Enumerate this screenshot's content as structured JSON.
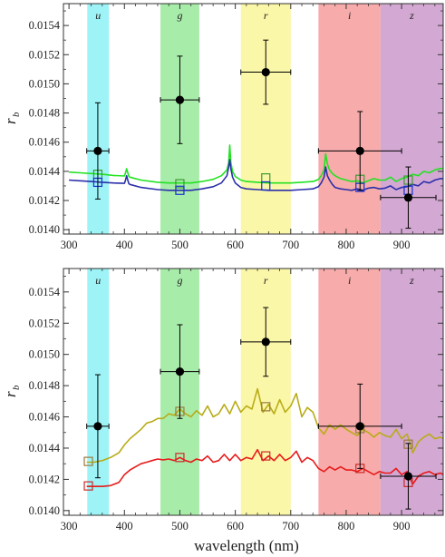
{
  "colors": {
    "u_band": "#9ef3f6",
    "g_band": "#a8ecaa",
    "r_band": "#fbf7a8",
    "i_band": "#f7abab",
    "z_band": "#d3a8d3",
    "upper_green": "#22e222",
    "upper_blue": "#2b2faa",
    "lower_olive": "#b8ac18",
    "lower_red": "#e81b1b",
    "upper_green_marker": "#3c9a33",
    "upper_blue_marker": "#1a2fd0",
    "lower_olive_marker": "#9a7a40",
    "lower_red_marker": "#cc2a2a",
    "observed": "#000000"
  },
  "chart_data": [
    {
      "type": "line",
      "panel": "top",
      "xlabel": "",
      "ylabel": "r",
      "ylabel_sub": "b",
      "xlim": [
        290,
        975
      ],
      "ylim": [
        0.01397,
        0.01555
      ],
      "x_ticks": [
        300,
        400,
        500,
        600,
        700,
        800,
        900
      ],
      "y_ticks": [
        "0.0140",
        "0.0142",
        "0.0144",
        "0.0146",
        "0.0148",
        "0.0150",
        "0.0152",
        "0.0154"
      ],
      "bands": [
        {
          "label": "u",
          "x0": 333,
          "x1": 372,
          "color_key": "u_band"
        },
        {
          "label": "g",
          "x0": 465,
          "x1": 535,
          "color_key": "g_band"
        },
        {
          "label": "r",
          "x0": 610,
          "x1": 700,
          "color_key": "r_band"
        },
        {
          "label": "i",
          "x0": 750,
          "x1": 862,
          "color_key": "i_band"
        },
        {
          "label": "z",
          "x0": 862,
          "x1": 975,
          "color_key": "z_band"
        }
      ],
      "series": [
        {
          "color_key": "upper_green",
          "x": [
            300,
            320,
            340,
            360,
            380,
            400,
            402,
            404,
            406,
            408,
            410,
            430,
            460,
            480,
            500,
            520,
            540,
            560,
            575,
            585,
            588,
            590,
            592,
            595,
            600,
            610,
            620,
            640,
            660,
            680,
            700,
            720,
            740,
            750,
            755,
            760,
            763,
            766,
            770,
            775,
            780,
            790,
            800,
            810,
            820,
            830,
            840,
            850,
            860,
            870,
            880,
            890,
            900,
            910,
            920,
            930,
            940,
            950,
            960,
            970,
            975
          ],
          "y": [
            0.014395,
            0.01439,
            0.014385,
            0.01438,
            0.014372,
            0.014368,
            0.01439,
            0.014418,
            0.01439,
            0.014365,
            0.01436,
            0.01434,
            0.014325,
            0.01432,
            0.01432,
            0.01432,
            0.01433,
            0.014345,
            0.01437,
            0.01441,
            0.01446,
            0.01458,
            0.01446,
            0.0144,
            0.014365,
            0.01434,
            0.01433,
            0.014325,
            0.01432,
            0.01432,
            0.01432,
            0.014325,
            0.01433,
            0.014345,
            0.01437,
            0.01441,
            0.01452,
            0.01445,
            0.01441,
            0.014385,
            0.01437,
            0.01435,
            0.01434,
            0.01433,
            0.014335,
            0.01432,
            0.014335,
            0.01435,
            0.01434,
            0.01434,
            0.01436,
            0.01433,
            0.01435,
            0.01436,
            0.01438,
            0.01437,
            0.0144,
            0.01439,
            0.01441,
            0.01442,
            0.01442
          ]
        },
        {
          "color_key": "upper_blue",
          "x": [
            300,
            320,
            340,
            360,
            380,
            400,
            402,
            404,
            406,
            408,
            410,
            430,
            460,
            480,
            500,
            520,
            540,
            560,
            575,
            585,
            588,
            590,
            592,
            595,
            600,
            610,
            620,
            640,
            660,
            680,
            700,
            720,
            740,
            750,
            755,
            760,
            763,
            766,
            770,
            775,
            780,
            790,
            800,
            810,
            820,
            830,
            840,
            850,
            860,
            870,
            880,
            890,
            900,
            910,
            920,
            930,
            940,
            950,
            960,
            970,
            975
          ],
          "y": [
            0.01434,
            0.014335,
            0.01433,
            0.014325,
            0.01432,
            0.014318,
            0.01434,
            0.01437,
            0.01434,
            0.014315,
            0.01431,
            0.01429,
            0.014275,
            0.01427,
            0.01427,
            0.01427,
            0.01428,
            0.014295,
            0.01432,
            0.01437,
            0.01443,
            0.01448,
            0.01442,
            0.01436,
            0.01432,
            0.01429,
            0.01428,
            0.014275,
            0.01427,
            0.01427,
            0.01427,
            0.014275,
            0.01428,
            0.014295,
            0.01432,
            0.01436,
            0.01443,
            0.01437,
            0.01434,
            0.01431,
            0.01429,
            0.01428,
            0.014275,
            0.01427,
            0.01428,
            0.01427,
            0.014285,
            0.01429,
            0.01428,
            0.014285,
            0.0143,
            0.014275,
            0.01429,
            0.014295,
            0.01431,
            0.0143,
            0.01433,
            0.01432,
            0.01434,
            0.01435,
            0.01435
          ]
        }
      ],
      "model_points": [
        {
          "color_key": "upper_green_marker",
          "x": [
            352,
            500,
            655,
            825,
            912
          ],
          "y": [
            0.01438,
            0.014315,
            0.014355,
            0.014345,
            0.01434
          ]
        },
        {
          "color_key": "upper_blue_marker",
          "x": [
            352,
            500,
            655,
            825,
            912
          ],
          "y": [
            0.014325,
            0.01427,
            0.0143,
            0.01429,
            0.01427
          ]
        }
      ],
      "observed": {
        "x": [
          352,
          500,
          655,
          825,
          912
        ],
        "y": [
          0.01454,
          0.01489,
          0.01508,
          0.01454,
          0.01422
        ],
        "xerr": [
          20,
          35,
          45,
          75,
          50
        ],
        "yerr": [
          0.00033,
          0.0003,
          0.00022,
          0.00027,
          0.00021
        ]
      }
    },
    {
      "type": "line",
      "panel": "bottom",
      "xlabel": "wavelength (nm)",
      "ylabel": "r",
      "ylabel_sub": "b",
      "xlim": [
        290,
        975
      ],
      "ylim": [
        0.01397,
        0.01555
      ],
      "x_ticks": [
        300,
        400,
        500,
        600,
        700,
        800,
        900
      ],
      "y_ticks": [
        "0.0140",
        "0.0142",
        "0.0144",
        "0.0146",
        "0.0148",
        "0.0150",
        "0.0152",
        "0.0154"
      ],
      "bands": [
        {
          "label": "u",
          "x0": 333,
          "x1": 372,
          "color_key": "u_band"
        },
        {
          "label": "g",
          "x0": 465,
          "x1": 535,
          "color_key": "g_band"
        },
        {
          "label": "r",
          "x0": 610,
          "x1": 700,
          "color_key": "r_band"
        },
        {
          "label": "i",
          "x0": 750,
          "x1": 862,
          "color_key": "i_band"
        },
        {
          "label": "z",
          "x0": 862,
          "x1": 975,
          "color_key": "z_band"
        }
      ],
      "series": [
        {
          "color_key": "lower_olive",
          "x": [
            332,
            345,
            360,
            375,
            390,
            400,
            410,
            420,
            430,
            440,
            450,
            460,
            470,
            480,
            490,
            500,
            510,
            520,
            530,
            540,
            550,
            560,
            570,
            580,
            590,
            600,
            610,
            620,
            630,
            640,
            650,
            660,
            670,
            680,
            690,
            700,
            710,
            720,
            730,
            740,
            750,
            760,
            770,
            780,
            790,
            800,
            810,
            820,
            830,
            840,
            850,
            860,
            870,
            880,
            890,
            900,
            910,
            920,
            930,
            940,
            950,
            960,
            970,
            975
          ],
          "y": [
            0.01431,
            0.01431,
            0.01432,
            0.01434,
            0.01437,
            0.01442,
            0.01446,
            0.01449,
            0.01452,
            0.01456,
            0.01457,
            0.01459,
            0.01459,
            0.01462,
            0.01461,
            0.01465,
            0.01462,
            0.0146,
            0.01464,
            0.01461,
            0.01467,
            0.0146,
            0.01462,
            0.01468,
            0.01462,
            0.0147,
            0.01463,
            0.01467,
            0.01465,
            0.01478,
            0.01463,
            0.01468,
            0.01462,
            0.01471,
            0.01463,
            0.01467,
            0.01475,
            0.0146,
            0.01466,
            0.01463,
            0.01453,
            0.01449,
            0.01455,
            0.01452,
            0.01455,
            0.01452,
            0.0145,
            0.01448,
            0.01452,
            0.0145,
            0.01447,
            0.0145,
            0.01448,
            0.01447,
            0.01452,
            0.01446,
            0.01449,
            0.01437,
            0.01444,
            0.01447,
            0.01449,
            0.01446,
            0.01447,
            0.01446
          ]
        },
        {
          "color_key": "lower_red",
          "x": [
            332,
            345,
            360,
            375,
            390,
            400,
            410,
            420,
            430,
            440,
            450,
            460,
            470,
            480,
            490,
            500,
            510,
            520,
            530,
            540,
            550,
            560,
            570,
            580,
            590,
            600,
            610,
            620,
            630,
            640,
            650,
            660,
            670,
            680,
            690,
            700,
            710,
            720,
            730,
            740,
            750,
            760,
            770,
            780,
            790,
            800,
            810,
            820,
            830,
            840,
            850,
            860,
            870,
            880,
            890,
            900,
            910,
            920,
            930,
            940,
            950,
            960,
            970,
            975
          ],
          "y": [
            0.014155,
            0.014155,
            0.014155,
            0.01416,
            0.01418,
            0.01423,
            0.01426,
            0.01428,
            0.0143,
            0.01431,
            0.01432,
            0.01433,
            0.014325,
            0.01433,
            0.01432,
            0.01434,
            0.01432,
            0.01431,
            0.01433,
            0.01432,
            0.01435,
            0.01431,
            0.01432,
            0.01436,
            0.01432,
            0.01436,
            0.01432,
            0.01434,
            0.01433,
            0.01439,
            0.01432,
            0.01435,
            0.01432,
            0.01436,
            0.01432,
            0.01434,
            0.01438,
            0.01431,
            0.01434,
            0.01432,
            0.01427,
            0.01425,
            0.01428,
            0.01426,
            0.01428,
            0.01426,
            0.01426,
            0.01425,
            0.01427,
            0.01425,
            0.01423,
            0.01425,
            0.01424,
            0.01424,
            0.01427,
            0.01423,
            0.01425,
            0.01417,
            0.01422,
            0.01424,
            0.01425,
            0.01423,
            0.01424,
            0.01423
          ]
        }
      ],
      "model_points": [
        {
          "color_key": "lower_olive_marker",
          "x": [
            335,
            500,
            655,
            825,
            912
          ],
          "y": [
            0.014315,
            0.014635,
            0.014665,
            0.014525,
            0.014425
          ]
        },
        {
          "color_key": "lower_red_marker",
          "x": [
            335,
            500,
            655,
            825,
            912
          ],
          "y": [
            0.014158,
            0.01434,
            0.01435,
            0.01427,
            0.01418
          ]
        }
      ],
      "observed": {
        "x": [
          352,
          500,
          655,
          825,
          912
        ],
        "y": [
          0.01454,
          0.01489,
          0.01508,
          0.01454,
          0.01422
        ],
        "xerr": [
          20,
          35,
          45,
          75,
          50
        ],
        "yerr": [
          0.00033,
          0.0003,
          0.00022,
          0.00027,
          0.00021
        ]
      }
    }
  ]
}
